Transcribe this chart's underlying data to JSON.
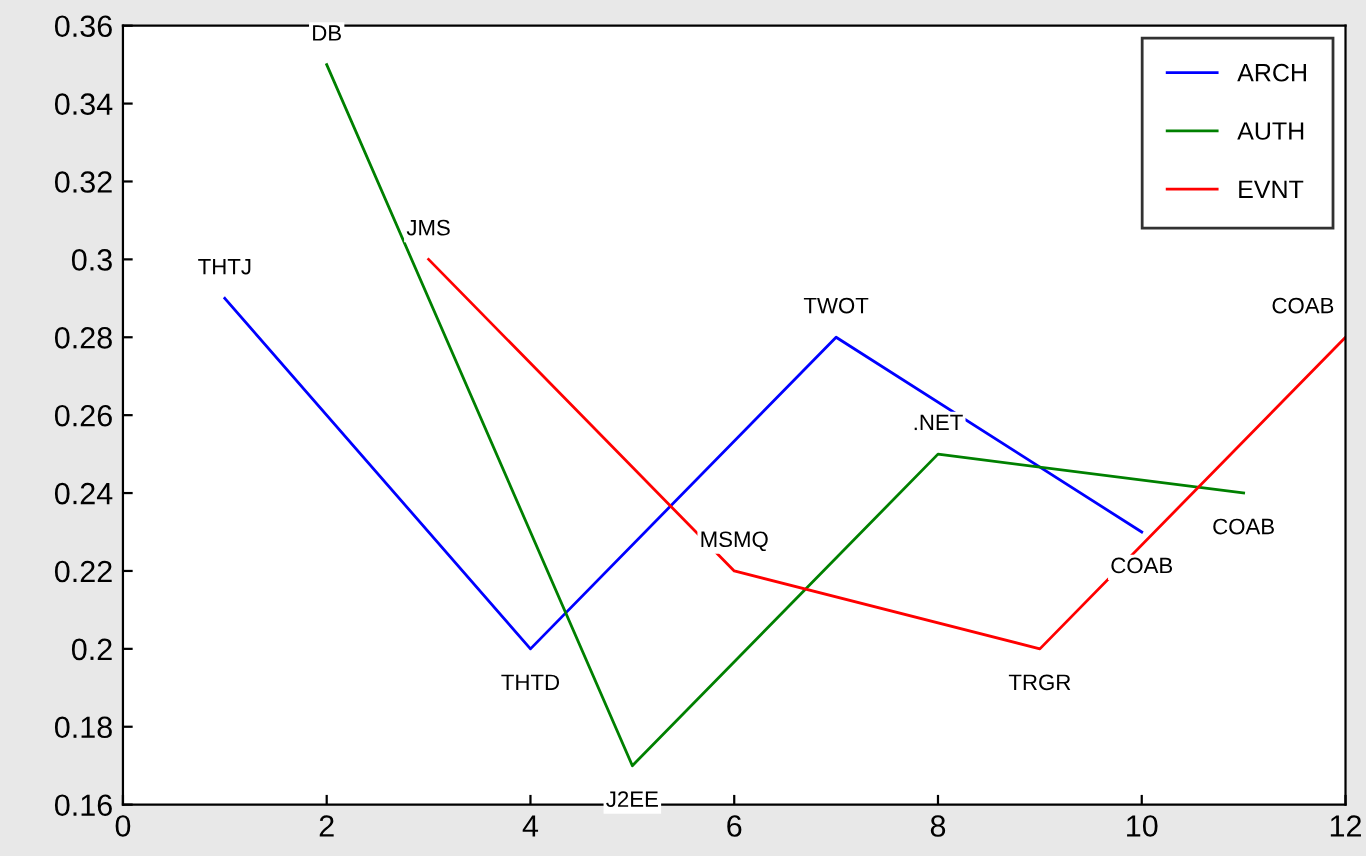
{
  "chart_data": {
    "type": "line",
    "xlim": [
      0,
      12
    ],
    "xticks": [
      0,
      2,
      4,
      6,
      8,
      10,
      12
    ],
    "ylim": [
      0.16,
      0.36
    ],
    "yticks": [
      0.16,
      0.18,
      0.2,
      0.22,
      0.24,
      0.26,
      0.28,
      0.3,
      0.32,
      0.34,
      0.36
    ],
    "grid": false,
    "legend": "top right",
    "marker": "none",
    "line_style": "solid",
    "series": [
      {
        "name": "ARCH",
        "color": "#0000ff",
        "x": [
          1,
          4,
          7,
          10
        ],
        "values": [
          0.29,
          0.2,
          0.28,
          0.23
        ]
      },
      {
        "name": "AUTH",
        "color": "#008000",
        "x": [
          2,
          5,
          8,
          11
        ],
        "values": [
          0.35,
          0.17,
          0.25,
          0.24
        ]
      },
      {
        "name": "EVNT",
        "color": "#ff0000",
        "x": [
          3,
          6,
          9,
          12
        ],
        "values": [
          0.3,
          0.22,
          0.2,
          0.28
        ]
      }
    ],
    "annotations": [
      {
        "text": "THTJ",
        "x": 1,
        "y": 0.29
      },
      {
        "text": "THTD",
        "x": 4,
        "y": 0.2
      },
      {
        "text": "TWOT",
        "x": 7,
        "y": 0.28
      },
      {
        "text": "COAB",
        "x": 10,
        "y": 0.23
      },
      {
        "text": "DB",
        "x": 2,
        "y": 0.35
      },
      {
        "text": "J2EE",
        "x": 5,
        "y": 0.17
      },
      {
        "text": ".NET",
        "x": 8,
        "y": 0.25
      },
      {
        "text": "COAB",
        "x": 11,
        "y": 0.24
      },
      {
        "text": "JMS",
        "x": 3,
        "y": 0.3
      },
      {
        "text": "MSMQ",
        "x": 6,
        "y": 0.22
      },
      {
        "text": "TRGR",
        "x": 9,
        "y": 0.2
      },
      {
        "text": "COAB",
        "x": 12,
        "y": 0.28
      }
    ]
  }
}
